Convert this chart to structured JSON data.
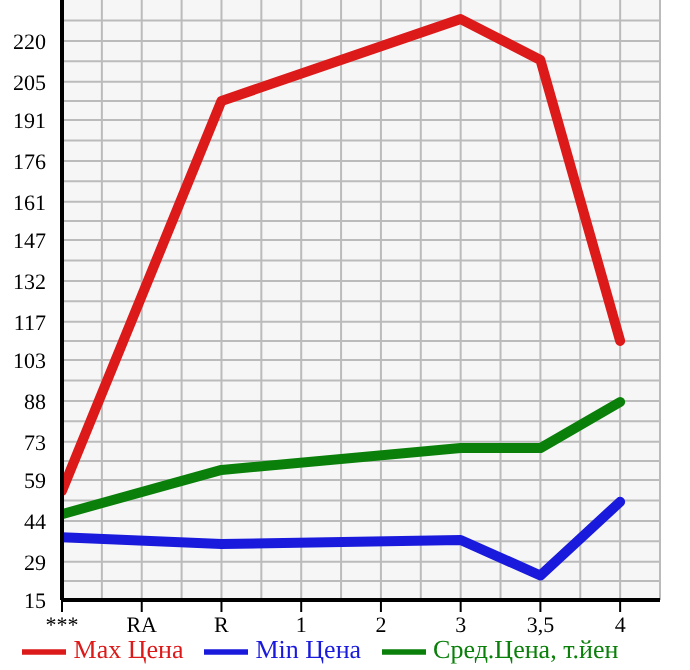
{
  "chart_data": {
    "type": "line",
    "categories": [
      "***",
      "RA",
      "R",
      "1",
      "2",
      "3",
      "3,5",
      "4"
    ],
    "series": [
      {
        "name": "Max Цена",
        "color": "#dd1a1a",
        "values": [
          55,
          null,
          198,
          null,
          null,
          228,
          213,
          110
        ]
      },
      {
        "name": "Min Цена",
        "color": "#1a1add",
        "values": [
          38,
          null,
          35.5,
          null,
          null,
          37,
          24,
          51
        ]
      },
      {
        "name": "Сред.Цена, т.йен",
        "color": "#0a800a",
        "values": [
          46.5,
          null,
          62.7,
          null,
          null,
          70.7,
          70.7,
          87.6
        ]
      }
    ],
    "ylim": [
      15,
      235
    ],
    "yticks": [
      15,
      29,
      44,
      59,
      73,
      88,
      103,
      117,
      132,
      147,
      161,
      176,
      191,
      205,
      220
    ],
    "grid": true,
    "legend": "bottom",
    "marker": "none",
    "line_style": "solid"
  }
}
